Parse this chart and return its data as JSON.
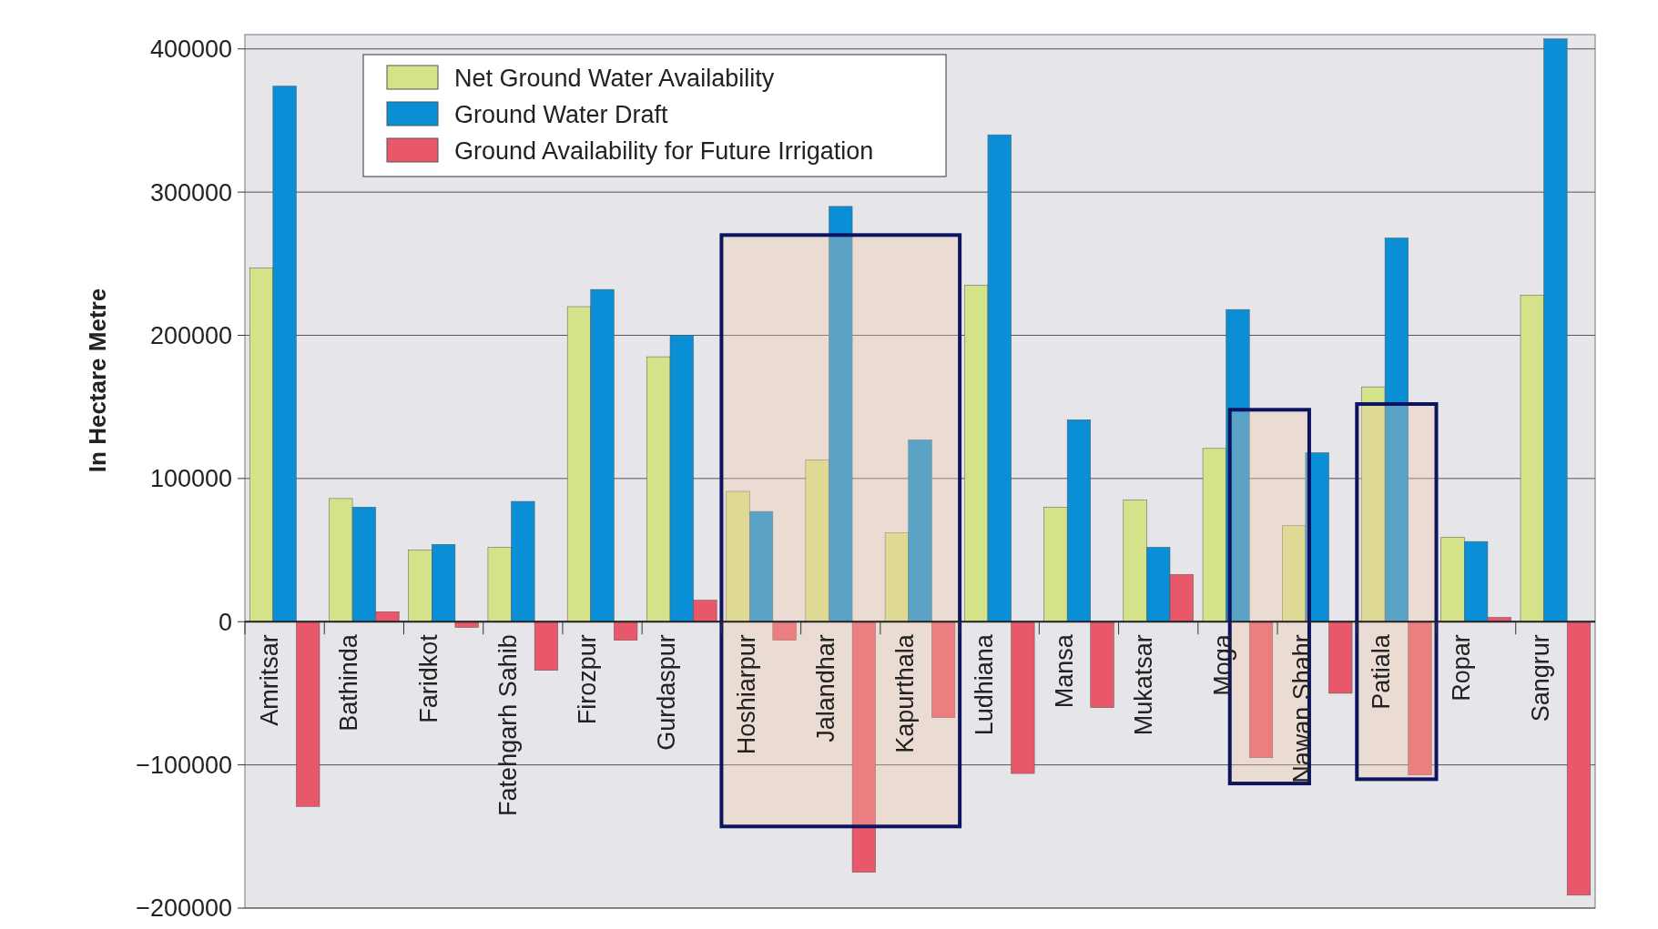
{
  "chart_data": {
    "type": "bar",
    "ylabel": "In Hectare Metre",
    "categories": [
      "Amritsar",
      "Bathinda",
      "Faridkot",
      "Fatehgarh Sahib",
      "Firozpur",
      "Gurdaspur",
      "Hoshiarpur",
      "Jalandhar",
      "Kapurthala",
      "Ludhiana",
      "Mansa",
      "Mukatsar",
      "Moga",
      "Nawan Shahr",
      "Patiala",
      "Ropar",
      "Sangrur"
    ],
    "series": [
      {
        "name": "Net Ground Water Availability",
        "color": "#d4e28a",
        "values": [
          247000,
          86000,
          50000,
          52000,
          220000,
          185000,
          91000,
          113000,
          62000,
          235000,
          80000,
          85000,
          121000,
          67000,
          164000,
          59000,
          228000
        ]
      },
      {
        "name": "Ground Water Draft",
        "color": "#0a8fd6",
        "values": [
          374000,
          80000,
          54000,
          84000,
          232000,
          200000,
          77000,
          290000,
          127000,
          340000,
          141000,
          52000,
          218000,
          118000,
          268000,
          56000,
          407000
        ]
      },
      {
        "name": "Ground Availability for Future Irrigation",
        "color": "#e8576a",
        "values": [
          -129000,
          7000,
          -4000,
          -34000,
          -13000,
          15000,
          -13000,
          -175000,
          -67000,
          -106000,
          -60000,
          33000,
          -95000,
          -50000,
          -107000,
          3000,
          -191000
        ]
      }
    ],
    "ylim": [
      -200000,
      410000
    ],
    "yticks": [
      {
        "value": -200000,
        "label": "−200000"
      },
      {
        "value": -100000,
        "label": "−100000"
      },
      0,
      100000,
      200000,
      300000,
      400000
    ],
    "grid": "y",
    "legend": "top left"
  }
}
